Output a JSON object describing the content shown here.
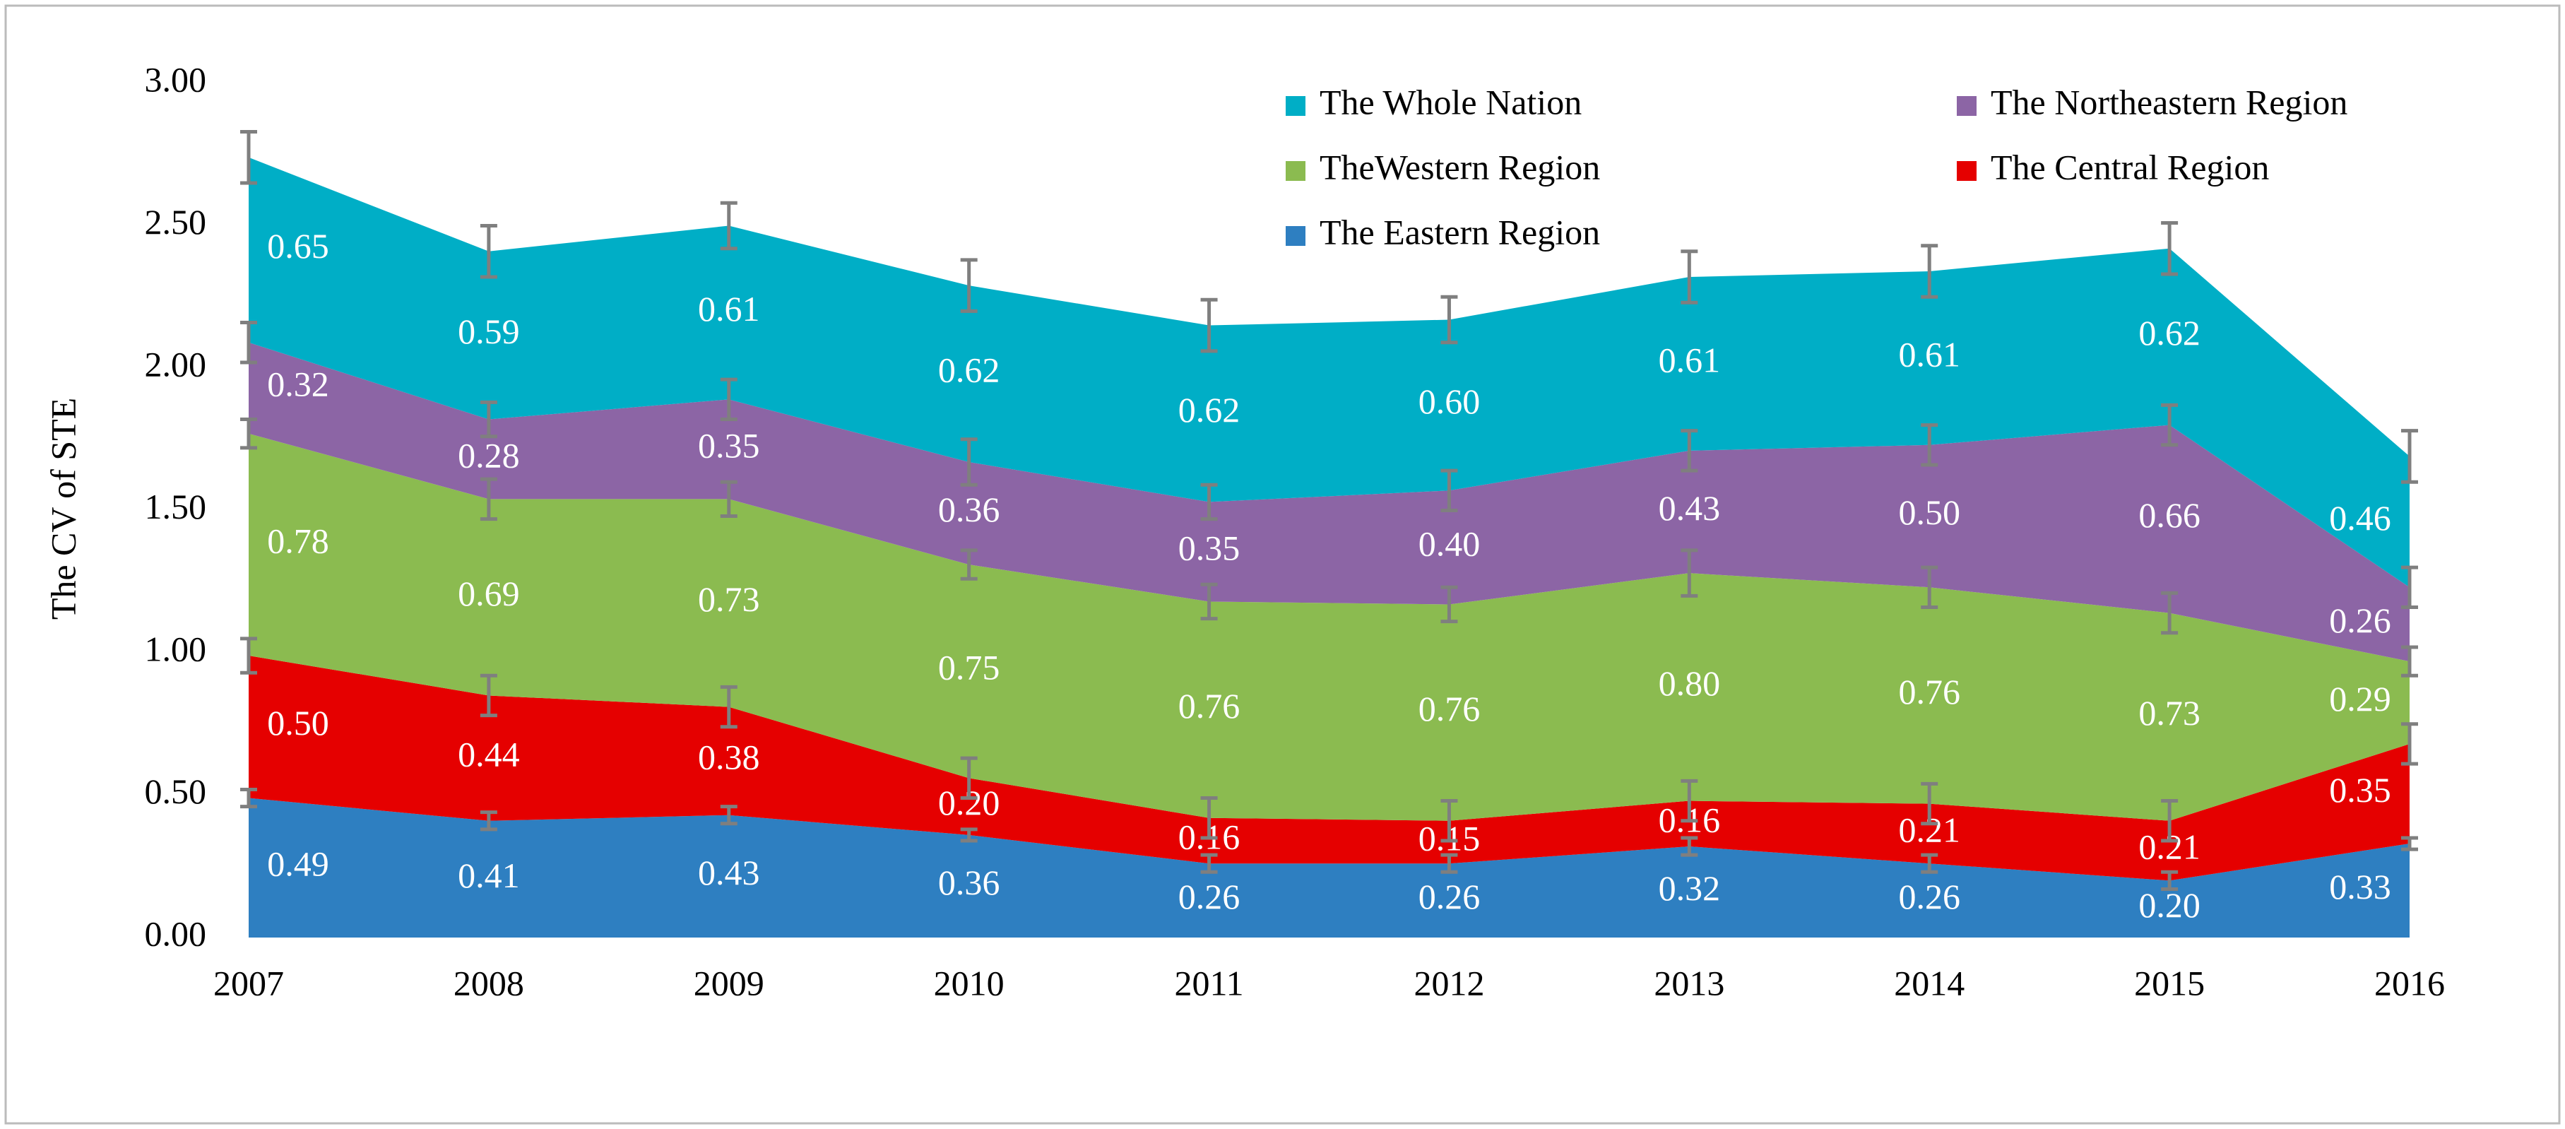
{
  "chart_data": {
    "type": "stacked_area",
    "ylabel": "The CV of STE",
    "x": [
      2007,
      2008,
      2009,
      2010,
      2011,
      2012,
      2013,
      2014,
      2015,
      2016
    ],
    "xlim": [
      2007,
      2016
    ],
    "xticks": [
      2007,
      2008,
      2009,
      2010,
      2011,
      2012,
      2013,
      2014,
      2015,
      2016
    ],
    "ylim": [
      0,
      3
    ],
    "yticks": [
      {
        "value": 0,
        "label": "0.00"
      },
      {
        "value": 0.5,
        "label": "0.50"
      },
      {
        "value": 1,
        "label": "1.00"
      },
      {
        "value": 1.5,
        "label": "1.50"
      },
      {
        "value": 2,
        "label": "2.00"
      },
      {
        "value": 2.5,
        "label": "2.50"
      },
      {
        "value": 3,
        "label": "3.00"
      }
    ],
    "series": [
      {
        "name": "The Eastern Region",
        "color": "#2e7fc1",
        "values": [
          0.49,
          0.41,
          0.43,
          0.36,
          0.26,
          0.26,
          0.32,
          0.26,
          0.2,
          0.33
        ],
        "value_labels": [
          "0.49",
          "0.41",
          "0.43",
          "0.36",
          "0.26",
          "0.26",
          "0.32",
          "0.26",
          "0.20",
          "0.33"
        ],
        "errors": [
          0.03,
          0.03,
          0.03,
          0.02,
          0.03,
          0.03,
          0.03,
          0.03,
          0.03,
          0.02
        ]
      },
      {
        "name": "The Central Region",
        "color": "#e50000",
        "values": [
          0.5,
          0.44,
          0.38,
          0.2,
          0.16,
          0.15,
          0.16,
          0.21,
          0.21,
          0.35
        ],
        "value_labels": [
          "0.50",
          "0.44",
          "0.38",
          "0.20",
          "0.16",
          "0.15",
          "0.16",
          "0.21",
          "0.21",
          "0.35"
        ],
        "errors": [
          0.06,
          0.07,
          0.07,
          0.07,
          0.07,
          0.07,
          0.07,
          0.07,
          0.07,
          0.07
        ]
      },
      {
        "name": "TheWestern Region",
        "color": "#8bbb50",
        "values": [
          0.78,
          0.69,
          0.73,
          0.75,
          0.76,
          0.76,
          0.8,
          0.76,
          0.73,
          0.29
        ],
        "value_labels": [
          "0.78",
          "0.69",
          "0.73",
          "0.75",
          "0.76",
          "0.76",
          "0.80",
          "0.76",
          "0.73",
          "0.29"
        ],
        "errors": [
          0.05,
          0.07,
          0.06,
          0.05,
          0.06,
          0.06,
          0.08,
          0.07,
          0.07,
          0.05
        ]
      },
      {
        "name": "The Northeastern Region",
        "color": "#8c65a5",
        "values": [
          0.32,
          0.28,
          0.35,
          0.36,
          0.35,
          0.4,
          0.43,
          0.5,
          0.66,
          0.26
        ],
        "value_labels": [
          "0.32",
          "0.28",
          "0.35",
          "0.36",
          "0.35",
          "0.40",
          "0.43",
          "0.50",
          "0.66",
          "0.26"
        ],
        "errors": [
          0.07,
          0.06,
          0.07,
          0.08,
          0.06,
          0.07,
          0.07,
          0.07,
          0.07,
          0.07
        ]
      },
      {
        "name": "The Whole Nation",
        "color": "#00aec6",
        "values": [
          0.65,
          0.59,
          0.61,
          0.62,
          0.62,
          0.6,
          0.61,
          0.61,
          0.62,
          0.46
        ],
        "value_labels": [
          "0.65",
          "0.59",
          "0.61",
          "0.62",
          "0.62",
          "0.60",
          "0.61",
          "0.61",
          "0.62",
          "0.46"
        ],
        "errors": [
          0.09,
          0.09,
          0.08,
          0.09,
          0.09,
          0.08,
          0.09,
          0.09,
          0.09,
          0.09
        ]
      }
    ]
  }
}
